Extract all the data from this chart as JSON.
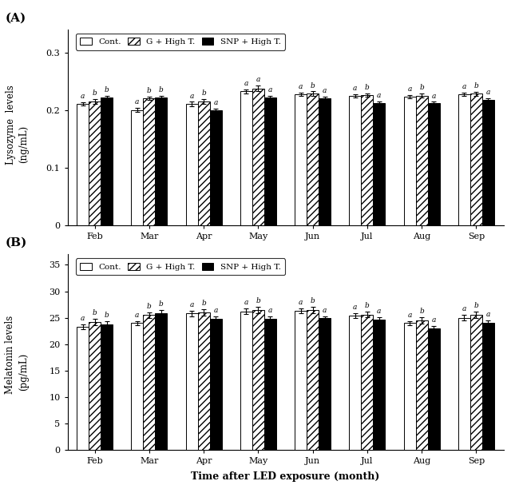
{
  "months": [
    "Feb",
    "Mar",
    "Apr",
    "May",
    "Jun",
    "Jul",
    "Aug",
    "Sep"
  ],
  "panel_A": {
    "ylabel_line1": "Lysozyme  levels",
    "ylabel_line2": "(ng/mL)",
    "ylim": [
      0,
      0.34
    ],
    "yticks": [
      0,
      0.1,
      0.2,
      0.3
    ],
    "ytick_labels": [
      "0",
      "0.1",
      "0.2",
      "0.3"
    ],
    "cont_values": [
      0.21,
      0.2,
      0.21,
      0.232,
      0.227,
      0.224,
      0.223,
      0.227
    ],
    "g_high_values": [
      0.215,
      0.22,
      0.215,
      0.237,
      0.228,
      0.226,
      0.225,
      0.228
    ],
    "snp_high_values": [
      0.222,
      0.222,
      0.199,
      0.222,
      0.22,
      0.212,
      0.212,
      0.218
    ],
    "cont_err": [
      0.003,
      0.003,
      0.004,
      0.004,
      0.003,
      0.003,
      0.003,
      0.003
    ],
    "g_high_err": [
      0.004,
      0.003,
      0.004,
      0.005,
      0.004,
      0.003,
      0.003,
      0.003
    ],
    "snp_high_err": [
      0.003,
      0.003,
      0.003,
      0.003,
      0.003,
      0.003,
      0.002,
      0.002
    ],
    "cont_letters": [
      "a",
      "a",
      "a",
      "a",
      "a",
      "a",
      "a",
      "a"
    ],
    "g_high_letters": [
      "b",
      "b",
      "b",
      "a",
      "b",
      "b",
      "b",
      "b"
    ],
    "snp_high_letters": [
      "b",
      "b",
      "a",
      "a",
      "a",
      "a",
      "a",
      "a"
    ]
  },
  "panel_B": {
    "ylabel_line1": "Melatonin levels",
    "ylabel_line2": "(pg/mL)",
    "ylim": [
      0,
      37
    ],
    "yticks": [
      0,
      5,
      10,
      15,
      20,
      25,
      30,
      35
    ],
    "ytick_labels": [
      "0",
      "5",
      "10",
      "15",
      "20",
      "25",
      "30",
      "35"
    ],
    "cont_values": [
      23.3,
      24.0,
      25.8,
      26.2,
      26.3,
      25.4,
      24.0,
      25.0
    ],
    "g_high_values": [
      24.2,
      25.5,
      26.0,
      26.5,
      26.5,
      25.6,
      24.5,
      25.5
    ],
    "snp_high_values": [
      23.8,
      25.9,
      24.8,
      24.8,
      24.9,
      24.7,
      23.0,
      24.1
    ],
    "cont_err": [
      0.4,
      0.4,
      0.5,
      0.5,
      0.5,
      0.5,
      0.4,
      0.5
    ],
    "g_high_err": [
      0.6,
      0.5,
      0.6,
      0.6,
      0.6,
      0.5,
      0.6,
      0.6
    ],
    "snp_high_err": [
      0.5,
      0.5,
      0.5,
      0.4,
      0.4,
      0.4,
      0.4,
      0.4
    ],
    "cont_letters": [
      "a",
      "a",
      "a",
      "a",
      "a",
      "a",
      "a",
      "a"
    ],
    "g_high_letters": [
      "b",
      "b",
      "b",
      "b",
      "b",
      "b",
      "b",
      "b"
    ],
    "snp_high_letters": [
      "b",
      "b",
      "a",
      "a",
      "a",
      "a",
      "a",
      "a"
    ]
  },
  "legend_labels": [
    "Cont.",
    "G + High T.",
    "SNP + High T."
  ],
  "bar_width": 0.22,
  "xlabel": "Time after LED exposure (month)",
  "hatch_g": "////",
  "letter_fontsize": 6.5,
  "axis_fontsize": 8.5,
  "tick_fontsize": 8,
  "legend_fontsize": 7.5,
  "xlabel_fontsize": 9
}
